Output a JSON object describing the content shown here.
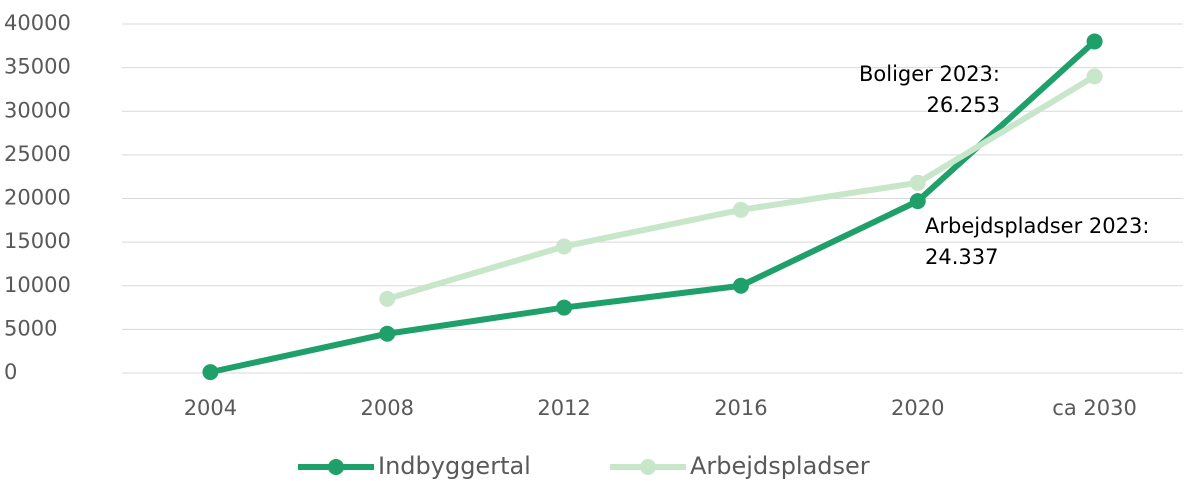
{
  "chart_data": {
    "type": "line",
    "categories": [
      "2004",
      "2008",
      "2012",
      "2016",
      "2020",
      "ca 2030"
    ],
    "series": [
      {
        "name": "Indbyggertal",
        "color": "#1fa06a",
        "values": [
          100,
          4500,
          7500,
          10000,
          19700,
          38000
        ]
      },
      {
        "name": "Arbejdspladser",
        "color": "#c8e6c9",
        "values": [
          null,
          8500,
          14500,
          18700,
          21800,
          34000
        ]
      }
    ],
    "ylim": [
      0,
      40000
    ],
    "yticks": [
      0,
      5000,
      10000,
      15000,
      20000,
      25000,
      30000,
      35000,
      40000
    ],
    "grid": true,
    "legend": "bottom",
    "annotations": [
      {
        "lines": [
          "Boliger 2023:",
          "26.253"
        ],
        "align": "right"
      },
      {
        "lines": [
          "Arbejdspladser 2023:",
          "24.337"
        ],
        "align": "left"
      }
    ]
  }
}
